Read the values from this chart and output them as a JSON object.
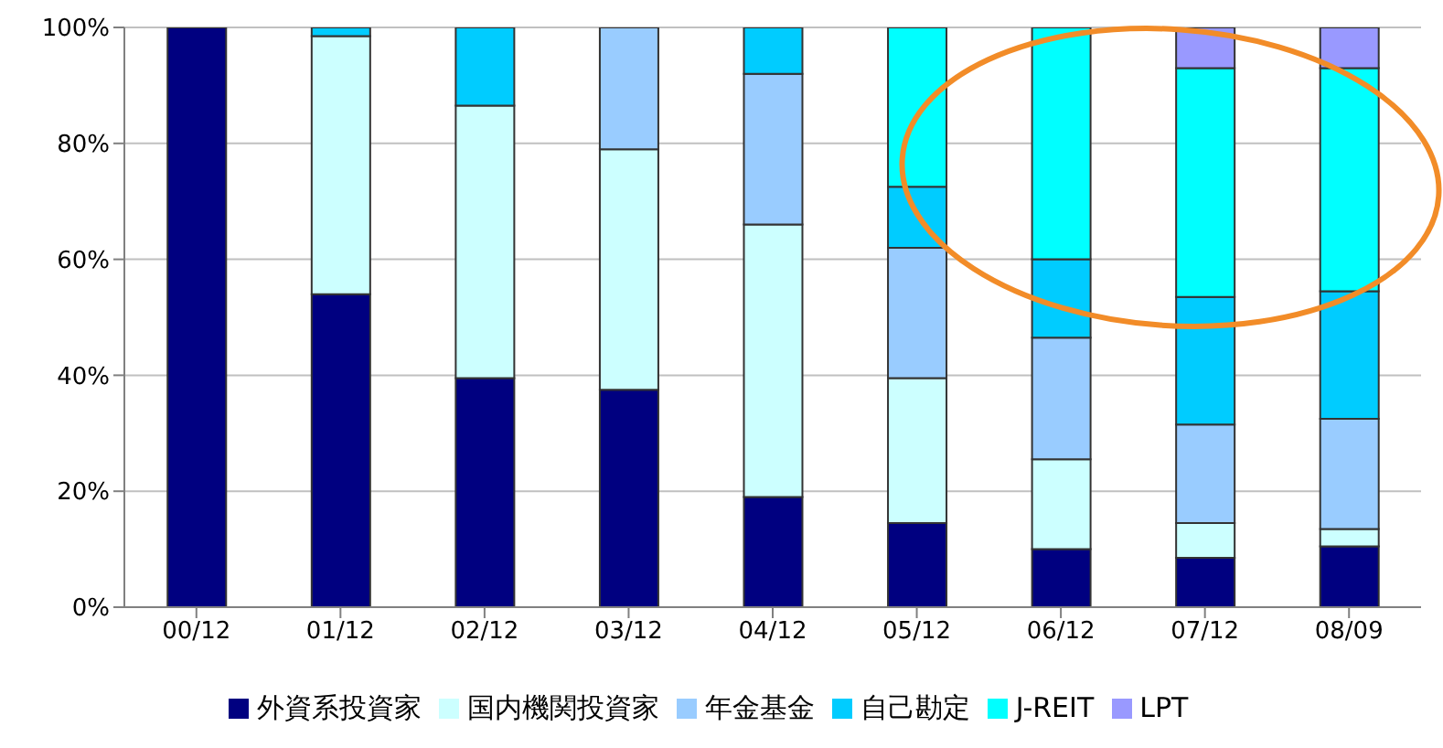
{
  "chart_data": {
    "type": "bar",
    "stacked": true,
    "categories": [
      "00/12",
      "01/12",
      "02/12",
      "03/12",
      "04/12",
      "05/12",
      "06/12",
      "07/12",
      "08/09"
    ],
    "series": [
      {
        "name": "外資系投資家",
        "color": "#000080",
        "values": [
          100,
          54,
          39.5,
          37.5,
          19,
          14.5,
          10,
          8.5,
          10.5
        ]
      },
      {
        "name": "国内機関投資家",
        "color": "#ccffff",
        "values": [
          0,
          44.5,
          47,
          41.5,
          47,
          25,
          15.5,
          6,
          3
        ]
      },
      {
        "name": "年金基金",
        "color": "#99ccff",
        "values": [
          0,
          0,
          0,
          21,
          26,
          22.5,
          21,
          17,
          19
        ]
      },
      {
        "name": "自己勘定",
        "color": "#00ccff",
        "values": [
          0,
          1.5,
          13.5,
          0,
          8,
          10.5,
          13.5,
          22,
          22
        ]
      },
      {
        "name": "J-REIT",
        "color": "#00ffff",
        "values": [
          0,
          0,
          0,
          0,
          0,
          27.5,
          40,
          39.5,
          38.5
        ]
      },
      {
        "name": "LPT",
        "color": "#9999ff",
        "values": [
          0,
          0,
          0,
          0,
          0,
          0,
          0,
          7,
          7
        ]
      }
    ],
    "ylim": [
      0,
      100
    ],
    "yticks": [
      {
        "value": 0,
        "label": "0%"
      },
      {
        "value": 20,
        "label": "20%"
      },
      {
        "value": 40,
        "label": "40%"
      },
      {
        "value": 60,
        "label": "60%"
      },
      {
        "value": 80,
        "label": "80%"
      },
      {
        "value": 100,
        "label": "100%"
      }
    ],
    "grid": "y",
    "legend": "bottom"
  }
}
